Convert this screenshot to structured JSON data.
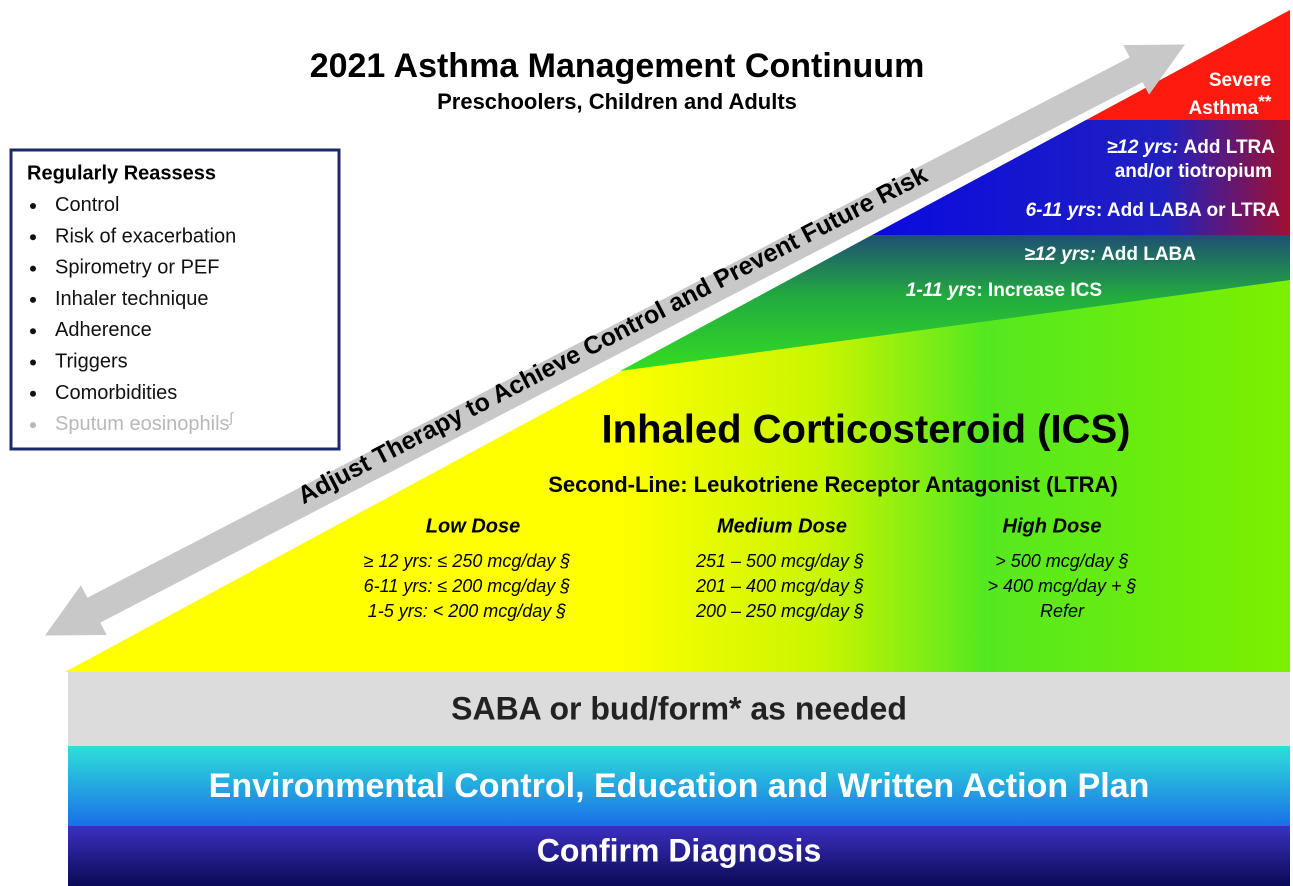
{
  "header": {
    "title": "2021 Asthma Management Continuum",
    "subtitle": "Preschoolers, Children and Adults"
  },
  "reassess": {
    "title": "Regularly Reassess",
    "items": [
      "Control",
      "Risk of exacerbation",
      "Spirometry or PEF",
      "Inhaler technique",
      "Adherence",
      "Triggers",
      "Comorbidities",
      "Sputum eosinophils"
    ],
    "mark": "ʃ"
  },
  "arrow_label": "Adjust Therapy to Achieve Control and Prevent Future Risk",
  "steps": {
    "severe": {
      "lines": [
        "Severe",
        "Asthma"
      ],
      "mark": "**"
    },
    "ltra": {
      "age": "≥12 yrs:",
      "text": "Add LTRA",
      "line2": "and/or tiotropium"
    },
    "laba_ltra": {
      "age": "6-11 yrs",
      "text": ": Add LABA or LTRA"
    },
    "laba": {
      "age": "≥12 yrs:",
      "text": "Add LABA"
    },
    "increase": {
      "age": "1-11 yrs",
      "text": ": Increase ICS"
    }
  },
  "ics": {
    "title": "Inhaled Corticosteroid (ICS)",
    "second_line": "Second-Line: Leukotriene Receptor Antagonist (LTRA)",
    "doses": [
      {
        "label": "Low Dose",
        "lines": [
          "≥ 12 yrs: ≤ 250 mcg/day §",
          "6-11 yrs: ≤ 200 mcg/day §",
          "1-5 yrs: < 200 mcg/day §"
        ]
      },
      {
        "label": "Medium Dose",
        "lines": [
          "251 – 500 mcg/day §",
          "201 – 400 mcg/day §",
          "200 – 250 mcg/day §"
        ]
      },
      {
        "label": "High Dose",
        "lines": [
          "> 500 mcg/day §",
          "> 400 mcg/day + §",
          "Refer"
        ]
      }
    ]
  },
  "bands": [
    "SABA or bud/form* as needed",
    "Environmental Control, Education and Written Action Plan",
    "Confirm Diagnosis"
  ]
}
